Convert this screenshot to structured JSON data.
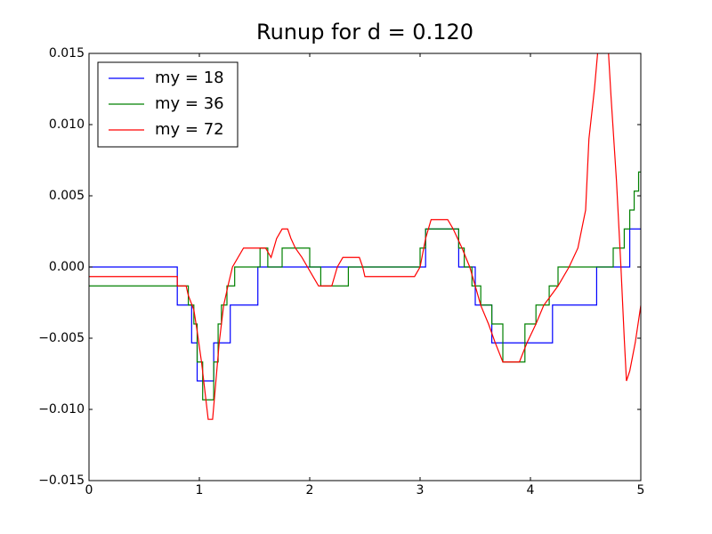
{
  "chart_data": {
    "type": "line",
    "title": "Runup for d = 0.120",
    "xlim": [
      0,
      5
    ],
    "xticks": [
      0,
      1,
      2,
      3,
      4,
      5
    ],
    "ylim": [
      -0.015,
      0.015
    ],
    "yticks": [
      {
        "value": -0.015,
        "label": "−0.015"
      },
      {
        "value": -0.01,
        "label": "−0.010"
      },
      {
        "value": -0.005,
        "label": "−0.005"
      },
      {
        "value": 0,
        "label": "0.000"
      },
      {
        "value": 0.005,
        "label": "0.005"
      },
      {
        "value": 0.01,
        "label": "0.010"
      },
      {
        "value": 0.015,
        "label": "0.015"
      }
    ],
    "legend": "upper left",
    "series": [
      {
        "name": "my = 18",
        "color": "#0000ff",
        "x": [
          0,
          0.8,
          0.8,
          0.93,
          0.93,
          0.98,
          0.98,
          1.13,
          1.13,
          1.28,
          1.28,
          1.53,
          1.53,
          3.05,
          3.05,
          3.35,
          3.35,
          3.5,
          3.5,
          3.65,
          3.65,
          4.2,
          4.2,
          4.6,
          4.6,
          4.9,
          4.9,
          5
        ],
        "values": [
          0,
          0,
          -0.00267,
          -0.00267,
          -0.00533,
          -0.00533,
          -0.008,
          -0.008,
          -0.00533,
          -0.00533,
          -0.00267,
          -0.00267,
          0,
          0,
          0.00267,
          0.00267,
          0,
          0,
          -0.00267,
          -0.00267,
          -0.00533,
          -0.00533,
          -0.00267,
          -0.00267,
          0,
          0,
          0.00267,
          0.00267
        ]
      },
      {
        "name": "my = 36",
        "color": "#008000",
        "x": [
          0,
          0.9,
          0.9,
          0.95,
          0.95,
          0.98,
          0.98,
          1.03,
          1.03,
          1.13,
          1.13,
          1.17,
          1.17,
          1.2,
          1.2,
          1.25,
          1.25,
          1.32,
          1.32,
          1.55,
          1.55,
          1.62,
          1.62,
          1.75,
          1.75,
          2.0,
          2.0,
          2.1,
          2.1,
          2.35,
          2.35,
          3.0,
          3.0,
          3.05,
          3.05,
          3.35,
          3.35,
          3.4,
          3.4,
          3.47,
          3.47,
          3.55,
          3.55,
          3.65,
          3.65,
          3.75,
          3.75,
          3.95,
          3.95,
          4.05,
          4.05,
          4.17,
          4.17,
          4.25,
          4.25,
          4.75,
          4.75,
          4.85,
          4.85,
          4.9,
          4.9,
          4.94,
          4.94,
          4.98,
          4.98,
          5
        ],
        "values": [
          -0.00133,
          -0.00133,
          -0.00267,
          -0.00267,
          -0.004,
          -0.004,
          -0.00667,
          -0.00667,
          -0.00933,
          -0.00933,
          -0.00667,
          -0.00667,
          -0.004,
          -0.004,
          -0.00267,
          -0.00267,
          -0.00133,
          -0.00133,
          0,
          0,
          0.00133,
          0.00133,
          0,
          0,
          0.00133,
          0.00133,
          0,
          0,
          -0.00133,
          -0.00133,
          0,
          0,
          0.00133,
          0.00133,
          0.00267,
          0.00267,
          0.00133,
          0.00133,
          0,
          0,
          -0.00133,
          -0.00133,
          -0.00267,
          -0.00267,
          -0.004,
          -0.004,
          -0.00667,
          -0.00667,
          -0.004,
          -0.004,
          -0.00267,
          -0.00267,
          -0.00133,
          -0.00133,
          0,
          0,
          0.00133,
          0.00133,
          0.00267,
          0.00267,
          0.004,
          0.004,
          0.00533,
          0.00533,
          0.00667,
          0.00667
        ]
      },
      {
        "name": "my = 72",
        "color": "#ff0000",
        "x": [
          0,
          0.8,
          0.8,
          0.88,
          0.9,
          0.95,
          0.98,
          1.02,
          1.05,
          1.08,
          1.12,
          1.15,
          1.18,
          1.22,
          1.26,
          1.3,
          1.4,
          1.6,
          1.65,
          1.7,
          1.75,
          1.8,
          1.83,
          1.87,
          1.93,
          1.98,
          2.03,
          2.08,
          2.2,
          2.25,
          2.3,
          2.45,
          2.48,
          2.5,
          2.95,
          3.0,
          3.05,
          3.1,
          3.25,
          3.3,
          3.38,
          3.45,
          3.5,
          3.55,
          3.62,
          3.68,
          3.75,
          3.9,
          3.97,
          4.05,
          4.12,
          4.25,
          4.35,
          4.43,
          4.5,
          4.53,
          4.58,
          4.62,
          4.7,
          4.73,
          4.78,
          4.82,
          4.85,
          4.87,
          4.9,
          4.95,
          5
        ],
        "values": [
          -0.00067,
          -0.00067,
          -0.00133,
          -0.00133,
          -0.002,
          -0.003,
          -0.0045,
          -0.0067,
          -0.0087,
          -0.0107,
          -0.0107,
          -0.008,
          -0.0053,
          -0.0027,
          -0.0013,
          0,
          0.00133,
          0.00133,
          0.00067,
          0.002,
          0.00267,
          0.00267,
          0.002,
          0.00133,
          0.00067,
          0,
          -0.00067,
          -0.00133,
          -0.00133,
          0,
          0.00067,
          0.00067,
          0,
          -0.00067,
          -0.00067,
          0,
          0.002,
          0.00333,
          0.00333,
          0.00267,
          0.00133,
          0,
          -0.00133,
          -0.0027,
          -0.004,
          -0.0053,
          -0.00667,
          -0.00667,
          -0.0053,
          -0.004,
          -0.0027,
          -0.00133,
          0,
          0.00133,
          0.004,
          0.009,
          0.0125,
          0.016,
          0.016,
          0.012,
          0.006,
          0,
          -0.005,
          -0.008,
          -0.0073,
          -0.0053,
          -0.0027
        ]
      }
    ]
  }
}
